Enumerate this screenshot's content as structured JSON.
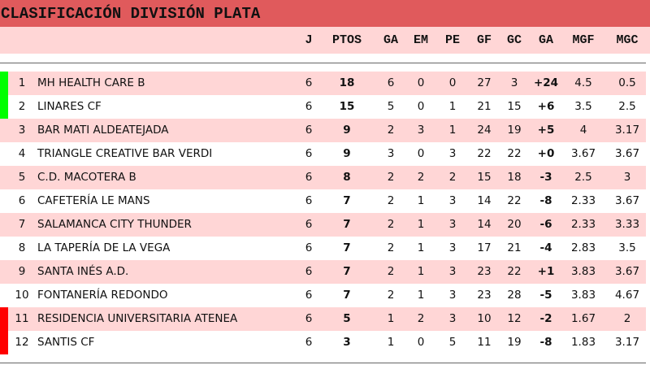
{
  "title": "CLASIFICACIÓN DIVISIÓN PLATA",
  "columns": [
    "J",
    "PTOS",
    "GA",
    "EM",
    "PE",
    "GF",
    "GC",
    "GA",
    "MGF",
    "MGC"
  ],
  "colors": {
    "title_bg": "#e05a5c",
    "row_alt": "#ffd6d6",
    "promotion": "#00ff00",
    "relegation": "#ff0000"
  },
  "rows": [
    {
      "pos": "1",
      "team": "MH HEALTH CARE B",
      "v": [
        "6",
        "18",
        "6",
        "0",
        "0",
        "27",
        "3",
        "+24",
        "4.5",
        "0.5"
      ],
      "zone": "promotion"
    },
    {
      "pos": "2",
      "team": "LINARES CF",
      "v": [
        "6",
        "15",
        "5",
        "0",
        "1",
        "21",
        "15",
        "+6",
        "3.5",
        "2.5"
      ],
      "zone": "promotion"
    },
    {
      "pos": "3",
      "team": "BAR MATI ALDEATEJADA",
      "v": [
        "6",
        "9",
        "2",
        "3",
        "1",
        "24",
        "19",
        "+5",
        "4",
        "3.17"
      ]
    },
    {
      "pos": "4",
      "team": "TRIANGLE CREATIVE BAR VERDI",
      "v": [
        "6",
        "9",
        "3",
        "0",
        "3",
        "22",
        "22",
        "+0",
        "3.67",
        "3.67"
      ]
    },
    {
      "pos": "5",
      "team": "C.D. MACOTERA B",
      "v": [
        "6",
        "8",
        "2",
        "2",
        "2",
        "15",
        "18",
        "-3",
        "2.5",
        "3"
      ]
    },
    {
      "pos": "6",
      "team": "CAFETERÍA LE MANS",
      "v": [
        "6",
        "7",
        "2",
        "1",
        "3",
        "14",
        "22",
        "-8",
        "2.33",
        "3.67"
      ]
    },
    {
      "pos": "7",
      "team": "SALAMANCA CITY THUNDER",
      "v": [
        "6",
        "7",
        "2",
        "1",
        "3",
        "14",
        "20",
        "-6",
        "2.33",
        "3.33"
      ]
    },
    {
      "pos": "8",
      "team": "LA TAPERÍA DE LA VEGA",
      "v": [
        "6",
        "7",
        "2",
        "1",
        "3",
        "17",
        "21",
        "-4",
        "2.83",
        "3.5"
      ]
    },
    {
      "pos": "9",
      "team": "SANTA INÉS A.D.",
      "v": [
        "6",
        "7",
        "2",
        "1",
        "3",
        "23",
        "22",
        "+1",
        "3.83",
        "3.67"
      ]
    },
    {
      "pos": "10",
      "team": "FONTANERÍA REDONDO",
      "v": [
        "6",
        "7",
        "2",
        "1",
        "3",
        "23",
        "28",
        "-5",
        "3.83",
        "4.67"
      ]
    },
    {
      "pos": "11",
      "team": "RESIDENCIA UNIVERSITARIA ATENEA",
      "v": [
        "6",
        "5",
        "1",
        "2",
        "3",
        "10",
        "12",
        "-2",
        "1.67",
        "2"
      ],
      "zone": "relegation"
    },
    {
      "pos": "12",
      "team": "SANTIS CF",
      "v": [
        "6",
        "3",
        "1",
        "0",
        "5",
        "11",
        "19",
        "-8",
        "1.83",
        "3.17"
      ],
      "zone": "relegation"
    }
  ]
}
